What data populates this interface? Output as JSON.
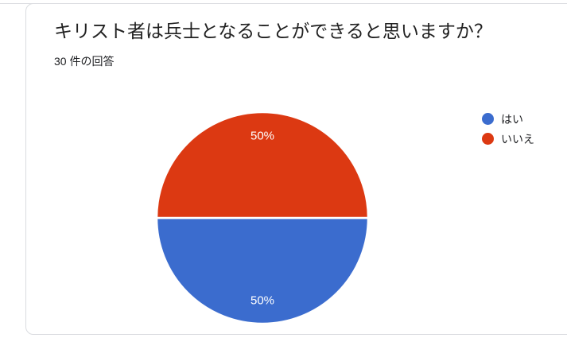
{
  "card": {
    "title": "キリスト者は兵士となることができると思いますか？",
    "response_count_label": "30 件の回答"
  },
  "colors": {
    "card_border": "#dadce0",
    "card_background": "#ffffff",
    "title_text": "#212121",
    "subtitle_text": "#202124",
    "legend_text": "#202124",
    "slice_label_text": "#ffffff",
    "slice_divider": "#ffffff"
  },
  "chart_data": {
    "type": "pie",
    "title": "キリスト者は兵士となることができると思いますか？",
    "subtitle": "30 件の回答",
    "total_responses": 30,
    "legend_position": "right",
    "slices": [
      {
        "label": "はい",
        "percent": 50,
        "display_percent": "50%",
        "color": "#3b6cce",
        "position": "bottom-half"
      },
      {
        "label": "いいえ",
        "percent": 50,
        "display_percent": "50%",
        "color": "#dc3912",
        "position": "top-half"
      }
    ]
  }
}
